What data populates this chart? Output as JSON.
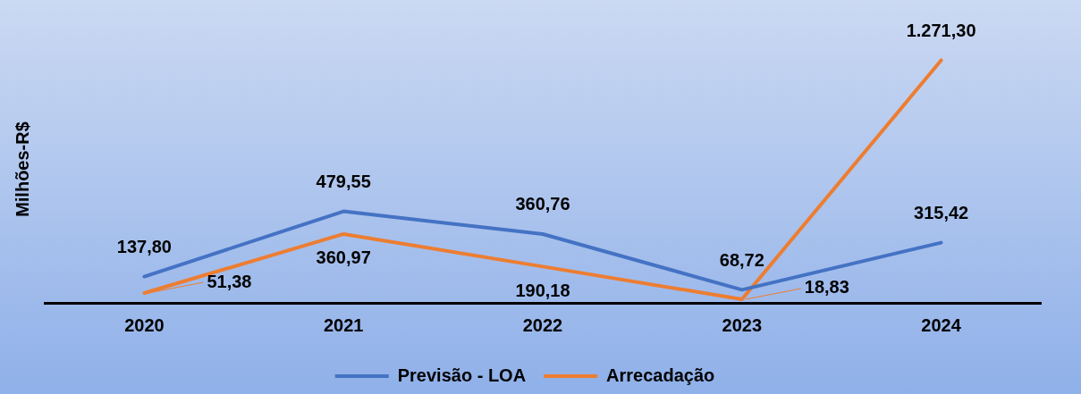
{
  "chart_data": {
    "type": "line",
    "ylabel": "Milhões-R$",
    "categories": [
      "2020",
      "2021",
      "2022",
      "2023",
      "2024"
    ],
    "series": [
      {
        "name": "Previsão - LOA",
        "color": "#4472c4",
        "values": [
          137.8,
          479.55,
          360.76,
          68.72,
          315.42
        ],
        "value_labels": [
          "137,80",
          "479,55",
          "360,76",
          "68,72",
          "315,42"
        ]
      },
      {
        "name": "Arrecadação",
        "color": "#ed7d31",
        "values": [
          51.38,
          360.97,
          190.18,
          18.83,
          1271.3
        ],
        "value_labels": [
          "51,38",
          "360,97",
          "190,18",
          "18,83",
          "1.271,30"
        ]
      }
    ],
    "legend": "bottom",
    "grid": false,
    "marker": "none",
    "line_style": "solid",
    "tick_labels": "x"
  }
}
